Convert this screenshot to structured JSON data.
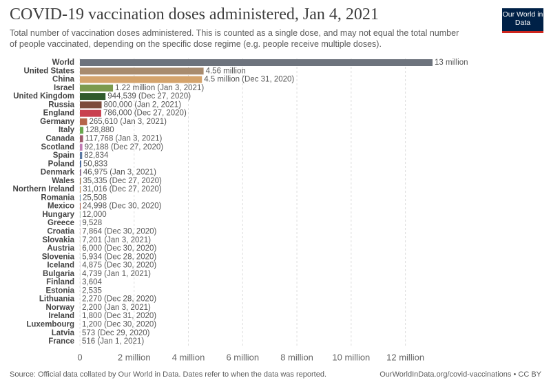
{
  "chart_data": {
    "type": "bar",
    "orientation": "horizontal",
    "title": "COVID-19 vaccination doses administered, Jan 4, 2021",
    "subtitle": "Total number of vaccination doses administered. This is counted as a single dose, and may not equal the total number of people vaccinated, depending on the specific dose regime (e.g. people receive multiple doses).",
    "logo": "Our World in Data",
    "source": "Source: Official data collated by Our World in Data. Dates refer to when the data was reported.",
    "url": "OurWorldInData.org/covid-vaccinations • CC BY",
    "categories": [
      "World",
      "United States",
      "China",
      "Israel",
      "United Kingdom",
      "Russia",
      "England",
      "Germany",
      "Italy",
      "Canada",
      "Scotland",
      "Spain",
      "Poland",
      "Denmark",
      "Wales",
      "Northern Ireland",
      "Romania",
      "Mexico",
      "Hungary",
      "Greece",
      "Croatia",
      "Slovakia",
      "Austria",
      "Slovenia",
      "Iceland",
      "Bulgaria",
      "Finland",
      "Estonia",
      "Lithuania",
      "Norway",
      "Ireland",
      "Luxembourg",
      "Latvia",
      "France"
    ],
    "values": [
      13000000,
      4560000,
      4500000,
      1220000,
      944539,
      800000,
      786000,
      265610,
      128880,
      117768,
      92188,
      82834,
      50833,
      46975,
      35335,
      31016,
      25508,
      24998,
      12000,
      9528,
      7864,
      7201,
      6000,
      5934,
      4875,
      4739,
      3604,
      2535,
      2270,
      2200,
      1800,
      1200,
      573,
      516
    ],
    "value_labels": [
      "13 million",
      "4.56 million",
      "4.5 million (Dec 31, 2020)",
      "1.22 million (Jan 3, 2021)",
      "944,539 (Dec 27, 2020)",
      "800,000 (Jan 2, 2021)",
      "786,000 (Dec 27, 2020)",
      "265,610 (Jan 3, 2021)",
      "128,880",
      "117,768 (Jan 3, 2021)",
      "92,188 (Dec 27, 2020)",
      "82,834",
      "50,833",
      "46,975 (Jan 3, 2021)",
      "35,335 (Dec 27, 2020)",
      "31,016 (Dec 27, 2020)",
      "25,508",
      "24,998 (Dec 30, 2020)",
      "12,000",
      "9,528",
      "7,864 (Dec 30, 2020)",
      "7,201 (Jan 3, 2021)",
      "6,000 (Dec 30, 2020)",
      "5,934 (Dec 28, 2020)",
      "4,875 (Dec 30, 2020)",
      "4,739 (Jan 1, 2021)",
      "3,604",
      "2,535",
      "2,270 (Dec 28, 2020)",
      "2,200 (Jan 3, 2021)",
      "1,800 (Dec 31, 2020)",
      "1,200 (Dec 30, 2020)",
      "573 (Dec 29, 2020)",
      "516 (Jan 1, 2021)"
    ],
    "colors": [
      "#6d737d",
      "#a88b6e",
      "#d4a36c",
      "#7c9a4e",
      "#2f5a2c",
      "#7c4a3a",
      "#c9404f",
      "#b5654a",
      "#6aa84f",
      "#9e5d6d",
      "#c07bb5",
      "#5b79a3",
      "#4c6a9c",
      "#8c6d8c",
      "#a07850",
      "#c2956a",
      "#6d8fa8",
      "#a35a45",
      "#5f8c6a",
      "#7a7aa8",
      "#b0706a",
      "#8aa05a",
      "#c08a5a",
      "#6a9aa0",
      "#9a6a9a",
      "#7a9a7a",
      "#a87a5a",
      "#5a7aa8",
      "#a0a05a",
      "#8a5a6a",
      "#6aa07a",
      "#a06a9a",
      "#7a8aa0",
      "#b08a8a"
    ],
    "xlim": [
      0,
      13000000
    ],
    "xticks": [
      0,
      {
        "value": 2000000,
        "label": "2 million"
      },
      {
        "value": 4000000,
        "label": "4 million"
      },
      {
        "value": 6000000,
        "label": "6 million"
      },
      {
        "value": 8000000,
        "label": "8 million"
      },
      {
        "value": 10000000,
        "label": "10 million"
      },
      {
        "value": 12000000,
        "label": "12 million"
      }
    ],
    "grid": true
  }
}
